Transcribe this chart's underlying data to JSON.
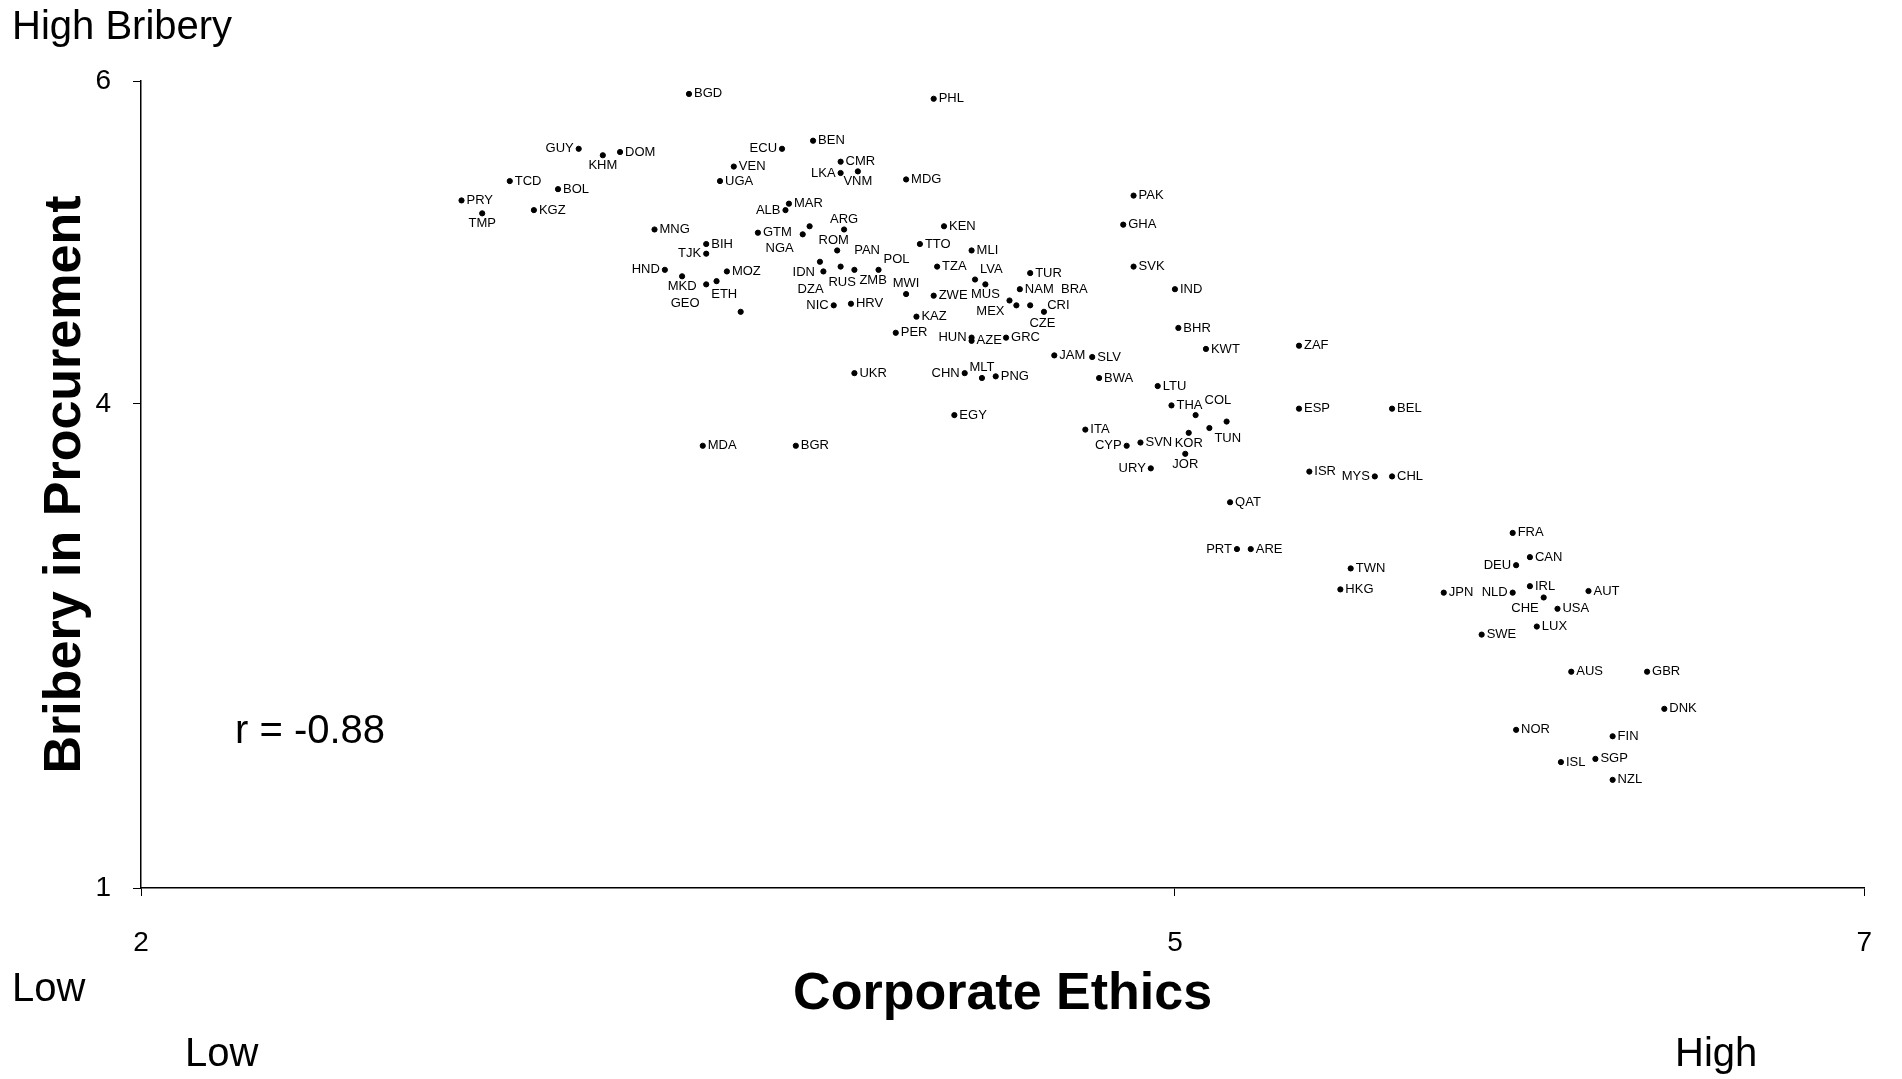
{
  "chart_data": {
    "type": "scatter",
    "xlabel": "Corporate Ethics",
    "ylabel": "Bribery in Procurement",
    "annotations": [
      "High Bribery",
      "r = -0.88",
      "Low",
      "Low",
      "High"
    ],
    "xlim": [
      2,
      7
    ],
    "xticks": [
      2,
      5,
      7
    ],
    "ylim": [
      1,
      6
    ],
    "yticks": [
      1,
      4,
      6
    ],
    "marker": "circle",
    "legend": false,
    "grid": false,
    "series": [
      {
        "color": "#000000",
        "x": [
          3.59,
          4.3,
          3.95,
          3.86,
          3.27,
          3.34,
          3.39,
          4.03,
          4.03,
          4.08,
          4.22,
          3.72,
          3.68,
          3.07,
          3.21,
          2.93,
          2.99,
          3.14,
          3.88,
          3.87,
          3.49,
          3.79,
          3.94,
          3.92,
          4.04,
          4.33,
          3.64,
          3.64,
          4.02,
          4.26,
          4.41,
          3.52,
          3.57,
          3.7,
          3.97,
          3.98,
          4.03,
          4.07,
          4.14,
          4.31,
          3.64,
          3.67,
          3.74,
          4.01,
          4.06,
          4.22,
          4.3,
          4.25,
          4.19,
          4.07,
          4.88,
          4.85,
          4.88,
          5.0,
          4.58,
          4.42,
          4.45,
          4.55,
          4.52,
          4.54,
          4.58,
          4.62,
          4.41,
          4.41,
          4.51,
          4.65,
          4.76,
          5.09,
          5.01,
          5.36,
          4.78,
          4.95,
          4.39,
          4.44,
          4.48,
          4.36,
          3.63,
          3.9,
          4.74,
          4.86,
          4.9,
          5.04,
          5.03,
          4.93,
          4.99,
          5.06,
          5.1,
          5.15,
          5.36,
          5.63,
          5.39,
          5.58,
          5.63,
          5.16,
          5.18,
          5.22,
          5.51,
          5.48,
          5.78,
          5.98,
          6.03,
          5.99,
          6.03,
          5.98,
          6.07,
          6.2,
          6.11,
          6.05,
          5.89,
          6.15,
          6.37,
          6.42,
          5.99,
          6.27,
          6.12,
          6.22,
          6.27
        ],
        "values": [
          5.92,
          5.89,
          5.63,
          5.58,
          5.58,
          5.54,
          5.56,
          5.5,
          5.43,
          5.44,
          5.39,
          5.47,
          5.38,
          5.38,
          5.33,
          5.26,
          5.18,
          5.2,
          5.24,
          5.2,
          5.08,
          5.06,
          5.1,
          5.05,
          5.08,
          5.1,
          4.99,
          4.93,
          4.95,
          4.99,
          4.95,
          4.83,
          4.79,
          4.82,
          4.88,
          4.82,
          4.85,
          4.83,
          4.83,
          4.85,
          4.74,
          4.76,
          4.57,
          4.61,
          4.62,
          4.68,
          4.67,
          4.54,
          4.44,
          4.19,
          5.29,
          5.11,
          4.85,
          4.71,
          4.81,
          4.77,
          4.74,
          4.71,
          4.64,
          4.61,
          4.61,
          4.57,
          4.41,
          4.39,
          4.41,
          4.3,
          4.29,
          4.34,
          4.47,
          4.36,
          4.16,
          4.11,
          4.19,
          4.16,
          4.17,
          3.93,
          3.74,
          3.74,
          3.84,
          3.74,
          3.76,
          3.82,
          3.69,
          3.6,
          3.99,
          3.93,
          3.85,
          3.89,
          3.97,
          3.97,
          3.58,
          3.55,
          3.55,
          3.39,
          3.1,
          3.1,
          2.98,
          2.85,
          2.83,
          3.2,
          3.05,
          3.0,
          2.87,
          2.83,
          2.8,
          2.84,
          2.73,
          2.62,
          2.57,
          2.34,
          2.34,
          2.11,
          1.98,
          1.94,
          1.78,
          1.8,
          1.67
        ],
        "value_labels": [
          "BGD",
          "PHL",
          "BEN",
          "ECU",
          "GUY",
          "KHM",
          "DOM",
          "CMR",
          "LKA",
          "VNM",
          "MDG",
          "VEN",
          "UGA",
          "TCD",
          "BOL",
          "PRY",
          "TMP",
          "KGZ",
          "MAR",
          "ALB",
          "MNG",
          "GTM",
          "ROM",
          "NGA",
          "ARG",
          "KEN",
          "BIH",
          "TJK",
          "PAN",
          "TTO",
          "MLI",
          "HND",
          "MKD",
          "MOZ",
          "IDN",
          "RUS",
          "DZA",
          "ZMB",
          "POL",
          "TZA",
          "ETH",
          "GEO",
          null,
          "NIC",
          "HRV",
          "MWI",
          "ZWE",
          "KAZ",
          "PER",
          "UKR",
          "PAK",
          "GHA",
          "SVK",
          "IND",
          "TUR",
          "LVA",
          "MUS",
          "NAM",
          "MEX",
          "CZE",
          "CRI",
          "BRA",
          "HUN",
          "AZE",
          "GRC",
          "JAM",
          "SLV",
          "KWT",
          "BHR",
          "ZAF",
          "BWA",
          "LTU",
          "CHN",
          "MLT",
          "PNG",
          "EGY",
          "MDA",
          "BGR",
          "ITA",
          "CYP",
          "SVN",
          "KOR",
          "JOR",
          "URY",
          "THA",
          "COL",
          "TUN",
          null,
          "ESP",
          "BEL",
          "ISR",
          "MYS",
          "CHL",
          "QAT",
          "PRT",
          "ARE",
          "TWN",
          "HKG",
          "JPN",
          "FRA",
          "CAN",
          "DEU",
          "IRL",
          "NLD",
          "CHE",
          "AUT",
          "USA",
          "LUX",
          "SWE",
          "AUS",
          "GBR",
          "DNK",
          "NOR",
          "FIN",
          "ISL",
          "SGP",
          "NZL"
        ]
      }
    ]
  }
}
